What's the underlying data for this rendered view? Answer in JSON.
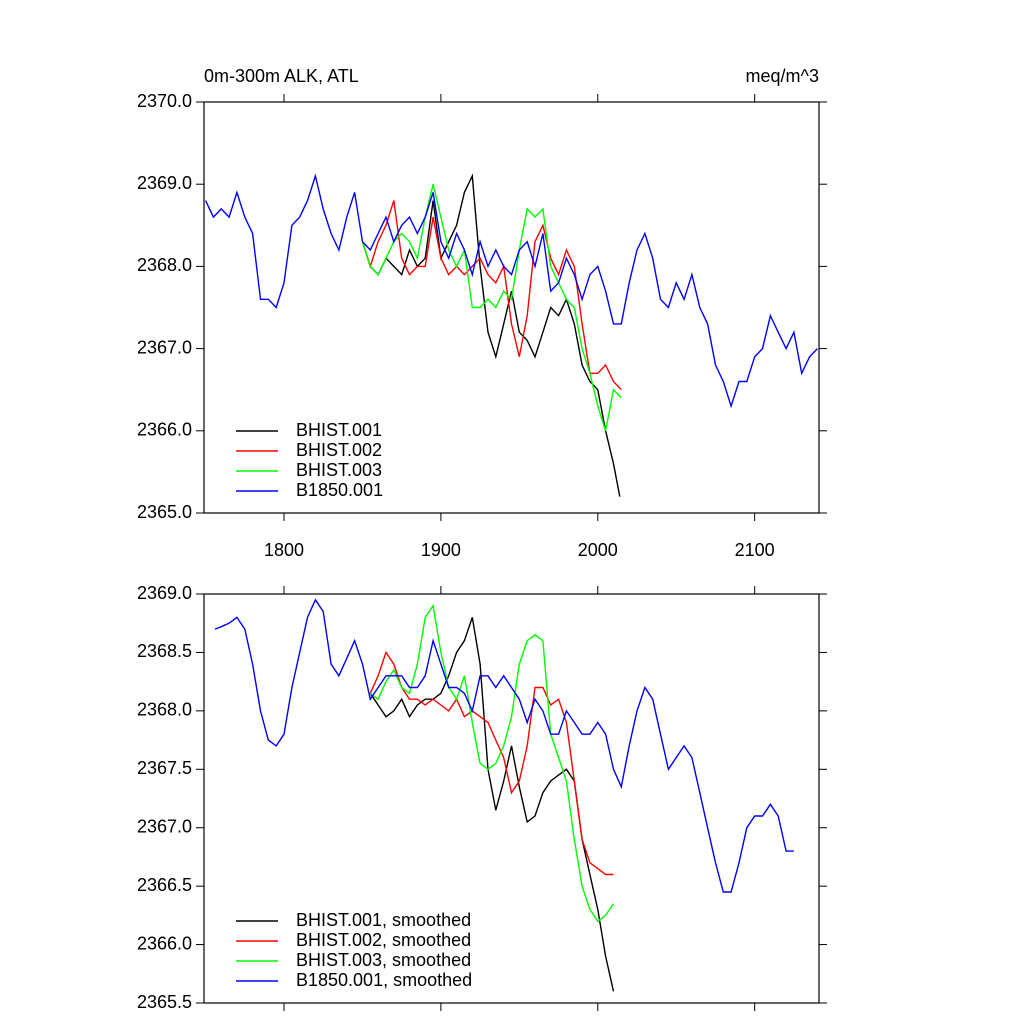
{
  "chart_data": [
    {
      "type": "line",
      "title": "0m-300m ALK, ATL",
      "units": "meq/m^3",
      "xlim": [
        1749,
        2141
      ],
      "xticks": [
        1800,
        1900,
        2000,
        2100
      ],
      "xtick_labels": true,
      "ylim": [
        2365,
        2370
      ],
      "yticks": [
        {
          "value": 2365,
          "label": "2365.0"
        },
        {
          "value": 2366,
          "label": "2366.0"
        },
        {
          "value": 2367,
          "label": "2367.0"
        },
        {
          "value": 2368,
          "label": "2368.0"
        },
        {
          "value": 2369,
          "label": "2369.0"
        },
        {
          "value": 2370,
          "label": "2370.0"
        }
      ],
      "legend": "lower left",
      "series": [
        {
          "name": "BHIST.001",
          "color": "#000000",
          "x": [
            1850,
            1855,
            1860,
            1865,
            1870,
            1875,
            1880,
            1885,
            1890,
            1895,
            1900,
            1905,
            1910,
            1915,
            1920,
            1925,
            1930,
            1935,
            1940,
            1945,
            1950,
            1955,
            1960,
            1965,
            1970,
            1975,
            1980,
            1985,
            1990,
            1995,
            2000,
            2005,
            2010,
            2014
          ],
          "values": [
            2368.3,
            2368.0,
            2367.9,
            2368.1,
            2368.0,
            2367.9,
            2368.2,
            2368.0,
            2368.1,
            2368.8,
            2368.1,
            2368.3,
            2368.5,
            2368.9,
            2369.1,
            2368.0,
            2367.2,
            2366.9,
            2367.3,
            2367.7,
            2367.2,
            2367.1,
            2366.9,
            2367.2,
            2367.5,
            2367.4,
            2367.6,
            2367.3,
            2366.8,
            2366.6,
            2366.5,
            2366.0,
            2365.6,
            2365.2
          ]
        },
        {
          "name": "BHIST.002",
          "color": "#ff0000",
          "x": [
            1850,
            1855,
            1860,
            1865,
            1870,
            1875,
            1880,
            1885,
            1890,
            1895,
            1900,
            1905,
            1910,
            1915,
            1920,
            1925,
            1930,
            1935,
            1940,
            1945,
            1950,
            1955,
            1960,
            1965,
            1970,
            1975,
            1980,
            1985,
            1990,
            1995,
            2000,
            2005,
            2010,
            2015
          ],
          "values": [
            2368.3,
            2368.0,
            2368.3,
            2368.5,
            2368.8,
            2368.1,
            2367.9,
            2368.0,
            2368.0,
            2368.6,
            2368.1,
            2367.9,
            2368.0,
            2367.9,
            2368.0,
            2368.1,
            2367.9,
            2367.8,
            2368.0,
            2367.3,
            2366.9,
            2367.4,
            2368.3,
            2368.5,
            2368.1,
            2367.9,
            2368.2,
            2368.0,
            2367.3,
            2366.7,
            2366.7,
            2366.8,
            2366.6,
            2366.5
          ]
        },
        {
          "name": "BHIST.003",
          "color": "#00ff00",
          "x": [
            1850,
            1855,
            1860,
            1865,
            1870,
            1875,
            1880,
            1885,
            1890,
            1895,
            1900,
            1905,
            1910,
            1915,
            1920,
            1925,
            1930,
            1935,
            1940,
            1945,
            1950,
            1955,
            1960,
            1965,
            1970,
            1975,
            1980,
            1985,
            1990,
            1995,
            2000,
            2005,
            2010,
            2015
          ],
          "values": [
            2368.3,
            2368.0,
            2367.9,
            2368.1,
            2368.3,
            2368.4,
            2368.3,
            2368.1,
            2368.6,
            2369.0,
            2368.6,
            2368.2,
            2368.0,
            2368.2,
            2367.5,
            2367.5,
            2367.6,
            2367.5,
            2367.7,
            2367.6,
            2368.2,
            2368.7,
            2368.6,
            2368.7,
            2368.0,
            2367.8,
            2367.6,
            2367.5,
            2367.0,
            2366.7,
            2366.3,
            2366.0,
            2366.5,
            2366.4
          ]
        },
        {
          "name": "B1850.001",
          "color": "#0000ff",
          "x": [
            1750,
            1755,
            1760,
            1765,
            1770,
            1775,
            1780,
            1785,
            1790,
            1795,
            1800,
            1805,
            1810,
            1815,
            1820,
            1825,
            1830,
            1835,
            1840,
            1845,
            1850,
            1855,
            1860,
            1865,
            1870,
            1875,
            1880,
            1885,
            1890,
            1895,
            1900,
            1905,
            1910,
            1915,
            1920,
            1925,
            1930,
            1935,
            1940,
            1945,
            1950,
            1955,
            1960,
            1965,
            1970,
            1975,
            1980,
            1985,
            1990,
            1995,
            2000,
            2005,
            2010,
            2015,
            2020,
            2025,
            2030,
            2035,
            2040,
            2045,
            2050,
            2055,
            2060,
            2065,
            2070,
            2075,
            2080,
            2085,
            2090,
            2095,
            2100,
            2105,
            2110,
            2115,
            2120,
            2125,
            2130,
            2135,
            2140
          ],
          "values": [
            2368.8,
            2368.6,
            2368.7,
            2368.6,
            2368.9,
            2368.6,
            2368.4,
            2367.6,
            2367.6,
            2367.5,
            2367.8,
            2368.5,
            2368.6,
            2368.8,
            2369.1,
            2368.7,
            2368.4,
            2368.2,
            2368.6,
            2368.9,
            2368.3,
            2368.2,
            2368.4,
            2368.6,
            2368.3,
            2368.5,
            2368.6,
            2368.4,
            2368.6,
            2368.9,
            2368.3,
            2368.1,
            2368.4,
            2368.2,
            2367.9,
            2368.3,
            2368.0,
            2368.2,
            2368.0,
            2367.9,
            2368.2,
            2368.3,
            2368.0,
            2368.4,
            2367.7,
            2367.8,
            2368.1,
            2367.9,
            2367.6,
            2367.9,
            2368.0,
            2367.7,
            2367.3,
            2367.3,
            2367.8,
            2368.2,
            2368.4,
            2368.1,
            2367.6,
            2367.5,
            2367.8,
            2367.6,
            2367.9,
            2367.5,
            2367.3,
            2366.8,
            2366.6,
            2366.3,
            2366.6,
            2366.6,
            2366.9,
            2367.0,
            2367.4,
            2367.2,
            2367.0,
            2367.2,
            2366.7,
            2366.9,
            2367.0
          ]
        }
      ]
    },
    {
      "type": "line",
      "xlim": [
        1749,
        2141
      ],
      "xticks": [
        1800,
        1900,
        2000,
        2100
      ],
      "xtick_labels": false,
      "ylim": [
        2365.5,
        2369
      ],
      "yticks": [
        2365.5,
        {
          "value": 2366,
          "label": "2366.0"
        },
        2366.5,
        {
          "value": 2367,
          "label": "2367.0"
        },
        2367.5,
        {
          "value": 2368,
          "label": "2368.0"
        },
        2368.5,
        {
          "value": 2369,
          "label": "2369.0"
        }
      ],
      "legend": "lower left",
      "series": [
        {
          "name": "BHIST.001, smoothed",
          "color": "#000000",
          "x": [
            1855,
            1860,
            1865,
            1870,
            1875,
            1880,
            1885,
            1890,
            1895,
            1900,
            1905,
            1910,
            1915,
            1920,
            1925,
            1930,
            1935,
            1940,
            1945,
            1950,
            1955,
            1960,
            1965,
            1970,
            1975,
            1980,
            1985,
            1990,
            1995,
            2000,
            2005,
            2010
          ],
          "values": [
            2368.15,
            2368.05,
            2367.95,
            2368.0,
            2368.1,
            2367.95,
            2368.05,
            2368.1,
            2368.1,
            2368.15,
            2368.3,
            2368.5,
            2368.6,
            2368.8,
            2368.4,
            2367.5,
            2367.15,
            2367.4,
            2367.7,
            2367.35,
            2367.05,
            2367.1,
            2367.3,
            2367.4,
            2367.45,
            2367.5,
            2367.4,
            2366.9,
            2366.6,
            2366.3,
            2365.9,
            2365.6
          ]
        },
        {
          "name": "BHIST.002, smoothed",
          "color": "#ff0000",
          "x": [
            1855,
            1860,
            1865,
            1870,
            1875,
            1880,
            1885,
            1890,
            1895,
            1900,
            1905,
            1910,
            1915,
            1920,
            1925,
            1930,
            1935,
            1940,
            1945,
            1950,
            1955,
            1960,
            1965,
            1970,
            1975,
            1980,
            1985,
            1990,
            1995,
            2000,
            2005,
            2010
          ],
          "values": [
            2368.15,
            2368.3,
            2368.5,
            2368.4,
            2368.2,
            2368.1,
            2368.1,
            2368.05,
            2368.1,
            2368.05,
            2368.0,
            2368.1,
            2367.95,
            2368.0,
            2367.95,
            2367.9,
            2367.75,
            2367.6,
            2367.3,
            2367.4,
            2367.7,
            2368.2,
            2368.2,
            2368.05,
            2368.1,
            2367.9,
            2367.4,
            2366.9,
            2366.7,
            2366.65,
            2366.6,
            2366.6
          ]
        },
        {
          "name": "BHIST.003, smoothed",
          "color": "#00ff00",
          "x": [
            1855,
            1860,
            1865,
            1870,
            1875,
            1880,
            1885,
            1890,
            1895,
            1900,
            1905,
            1910,
            1915,
            1920,
            1925,
            1930,
            1935,
            1940,
            1945,
            1950,
            1955,
            1960,
            1965,
            1970,
            1975,
            1980,
            1985,
            1990,
            1995,
            2000,
            2005,
            2010
          ],
          "values": [
            2368.15,
            2368.1,
            2368.25,
            2368.35,
            2368.2,
            2368.15,
            2368.4,
            2368.8,
            2368.9,
            2368.5,
            2368.2,
            2368.1,
            2368.3,
            2367.9,
            2367.55,
            2367.5,
            2367.55,
            2367.7,
            2367.95,
            2368.4,
            2368.6,
            2368.65,
            2368.6,
            2367.8,
            2367.6,
            2367.4,
            2366.9,
            2366.5,
            2366.3,
            2366.2,
            2366.25,
            2366.35
          ]
        },
        {
          "name": "B1850.001, smoothed",
          "color": "#0000ff",
          "x": [
            1756,
            1760,
            1765,
            1770,
            1775,
            1780,
            1785,
            1790,
            1795,
            1800,
            1805,
            1810,
            1815,
            1820,
            1825,
            1830,
            1835,
            1840,
            1845,
            1850,
            1855,
            1860,
            1865,
            1870,
            1875,
            1880,
            1885,
            1890,
            1895,
            1900,
            1905,
            1910,
            1915,
            1920,
            1925,
            1930,
            1935,
            1940,
            1945,
            1950,
            1955,
            1960,
            1965,
            1970,
            1975,
            1980,
            1985,
            1990,
            1995,
            2000,
            2005,
            2010,
            2015,
            2020,
            2025,
            2030,
            2035,
            2040,
            2045,
            2050,
            2055,
            2060,
            2065,
            2070,
            2075,
            2080,
            2085,
            2090,
            2095,
            2100,
            2105,
            2110,
            2115,
            2120,
            2125
          ],
          "values": [
            2368.7,
            2368.72,
            2368.75,
            2368.8,
            2368.7,
            2368.4,
            2368.0,
            2367.75,
            2367.7,
            2367.8,
            2368.2,
            2368.5,
            2368.8,
            2368.95,
            2368.85,
            2368.4,
            2368.3,
            2368.45,
            2368.6,
            2368.4,
            2368.1,
            2368.2,
            2368.3,
            2368.3,
            2368.3,
            2368.2,
            2368.2,
            2368.3,
            2368.6,
            2368.4,
            2368.2,
            2368.2,
            2368.15,
            2368.0,
            2368.3,
            2368.3,
            2368.2,
            2368.3,
            2368.2,
            2368.1,
            2367.9,
            2368.1,
            2368.0,
            2367.8,
            2367.8,
            2368.0,
            2367.9,
            2367.8,
            2367.8,
            2367.9,
            2367.8,
            2367.5,
            2367.35,
            2367.7,
            2368.0,
            2368.2,
            2368.1,
            2367.8,
            2367.5,
            2367.6,
            2367.7,
            2367.6,
            2367.3,
            2367.0,
            2366.7,
            2366.45,
            2366.45,
            2366.7,
            2367.0,
            2367.1,
            2367.1,
            2367.2,
            2367.1,
            2366.8,
            2366.8
          ]
        }
      ]
    }
  ]
}
